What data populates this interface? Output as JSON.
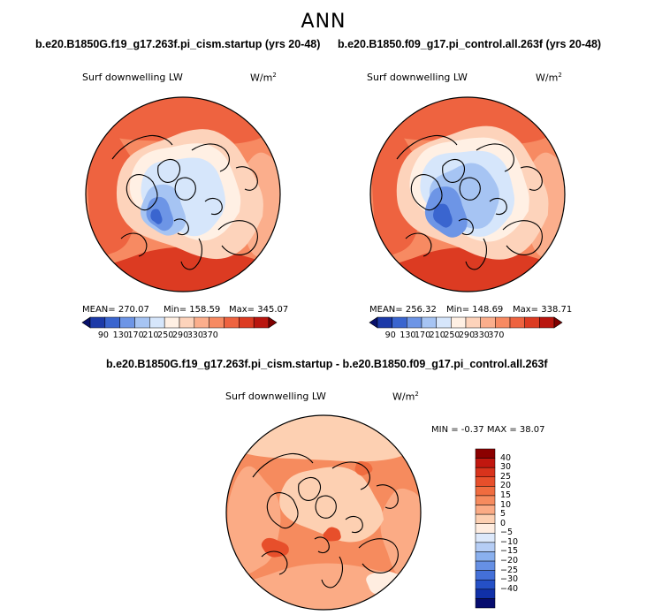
{
  "figure": {
    "title": "ANN"
  },
  "colors": {
    "land": "#000000",
    "outline": "#000000"
  },
  "chart_data": [
    {
      "type": "heatmap",
      "name": "left-map",
      "case_title": "b.e20.B1850G.f19_g17.263f.pi_cism.startup (yrs 20-48)",
      "variable_label": "Surf downwelling LW",
      "units_label": "W/m",
      "units_exp": "2",
      "stats": {
        "mean_label": "MEAN= 270.07",
        "min_label": "Min= 158.59",
        "max_label": "Max= 345.07"
      },
      "colorbar": {
        "orientation": "horizontal",
        "colors": [
          "#08106b",
          "#1c3aa8",
          "#3a65cf",
          "#6d95e6",
          "#a6c4f3",
          "#d6e6fb",
          "#fff0e4",
          "#fdd3bb",
          "#fbae8c",
          "#f78a62",
          "#ee6340",
          "#dc3b22",
          "#b9160f",
          "#7f0000"
        ],
        "ticks": [
          "90",
          "130",
          "170",
          "210",
          "250",
          "290",
          "330",
          "370"
        ]
      },
      "stats_values": {
        "mean": 270.07,
        "min": 158.59,
        "max": 345.07
      }
    },
    {
      "type": "heatmap",
      "name": "right-map",
      "case_title": "b.e20.B1850.f09_g17.pi_control.all.263f (yrs 20-48)",
      "variable_label": "Surf downwelling LW",
      "units_label": "W/m",
      "units_exp": "2",
      "stats": {
        "mean_label": "MEAN= 256.32",
        "min_label": "Min= 148.69",
        "max_label": "Max= 338.71"
      },
      "colorbar": {
        "orientation": "horizontal",
        "colors": [
          "#08106b",
          "#1c3aa8",
          "#3a65cf",
          "#6d95e6",
          "#a6c4f3",
          "#d6e6fb",
          "#fff0e4",
          "#fdd3bb",
          "#fbae8c",
          "#f78a62",
          "#ee6340",
          "#dc3b22",
          "#b9160f",
          "#7f0000"
        ],
        "ticks": [
          "90",
          "130",
          "170",
          "210",
          "250",
          "290",
          "330",
          "370"
        ]
      },
      "stats_values": {
        "mean": 256.32,
        "min": 148.69,
        "max": 338.71
      }
    },
    {
      "type": "heatmap",
      "name": "difference-map",
      "case_title": "b.e20.B1850G.f19_g17.263f.pi_cism.startup - b.e20.B1850.f09_g17.pi_control.all.263f",
      "variable_label": "Surf downwelling LW",
      "units_label": "W/m",
      "units_exp": "2",
      "stats": {
        "label": "MIN =  -0.37 MAX =  38.07"
      },
      "stats_values": {
        "min": -0.37,
        "max": 38.07
      },
      "colorbar": {
        "orientation": "vertical",
        "colors_top_to_bottom": [
          "#8b0000",
          "#c1170f",
          "#d8331c",
          "#e74f2b",
          "#f06c3f",
          "#f68b5e",
          "#fbab85",
          "#fdd0b2",
          "#ffede0",
          "#dde9fb",
          "#b5cdf5",
          "#8ab0ee",
          "#6690e4",
          "#4470d8",
          "#2550c6",
          "#1030a8",
          "#060c6e"
        ],
        "ticks": [
          "40",
          "30",
          "25",
          "20",
          "15",
          "10",
          "5",
          "0",
          "−5",
          "−10",
          "−15",
          "−20",
          "−25",
          "−30",
          "−40"
        ]
      }
    }
  ]
}
